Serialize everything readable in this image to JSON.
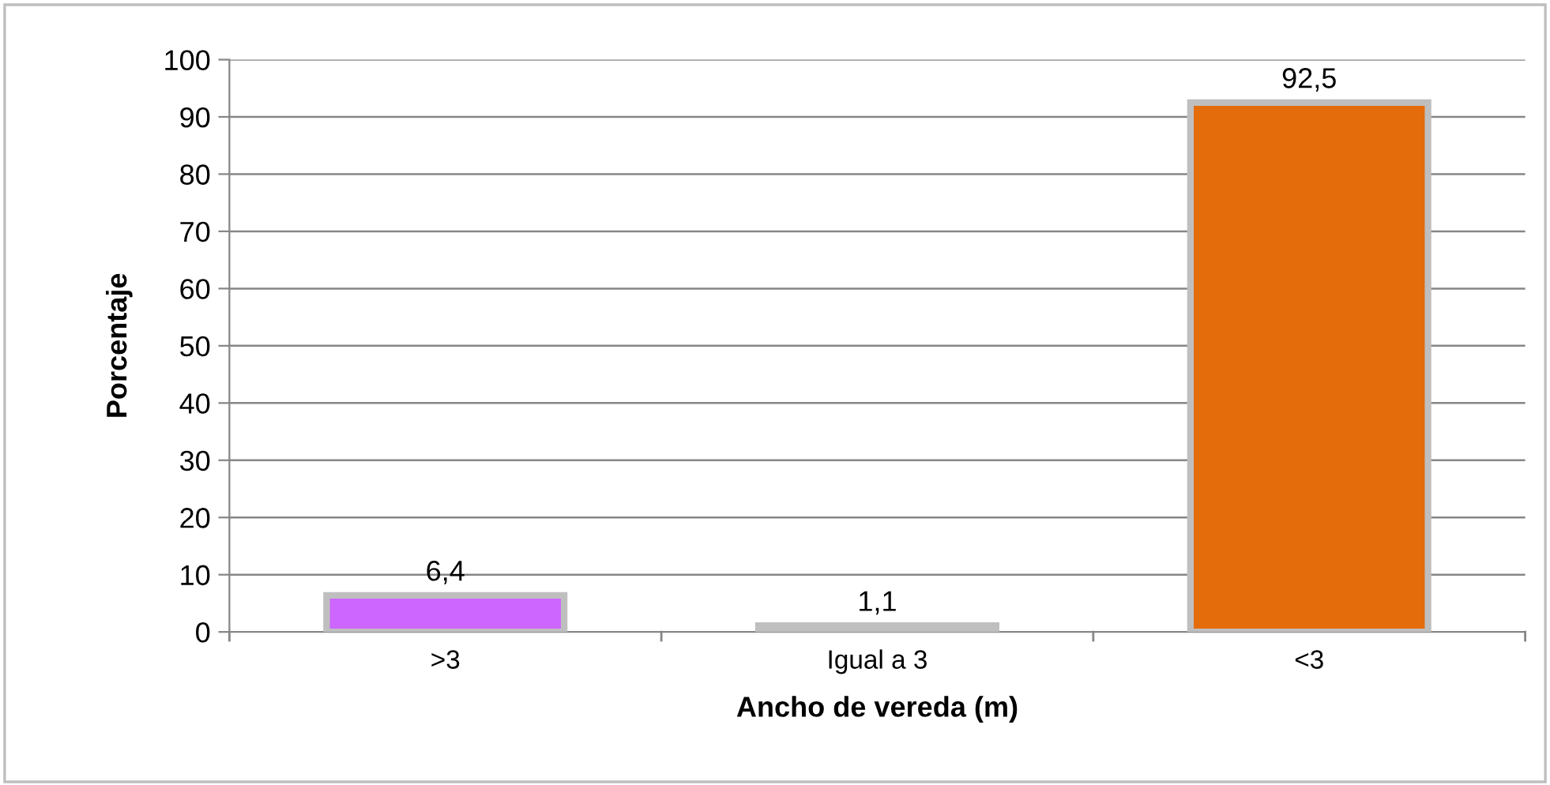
{
  "chart_data": {
    "type": "bar",
    "xlabel": "Ancho de vereda (m)",
    "ylabel": "Porcentaje",
    "categories": [
      ">3",
      "Igual a 3",
      "<3"
    ],
    "values": [
      6.4,
      1.1,
      92.5
    ],
    "colors": [
      "#cc66ff",
      "#bfbfbf",
      "#e46c0a"
    ],
    "value_labels": [
      "6,4",
      "1,1",
      "92,5"
    ],
    "ylim": [
      0,
      100
    ],
    "yticks": [
      0,
      10,
      20,
      30,
      40,
      50,
      60,
      70,
      80,
      90,
      100
    ],
    "grid": "y",
    "legend": false
  }
}
